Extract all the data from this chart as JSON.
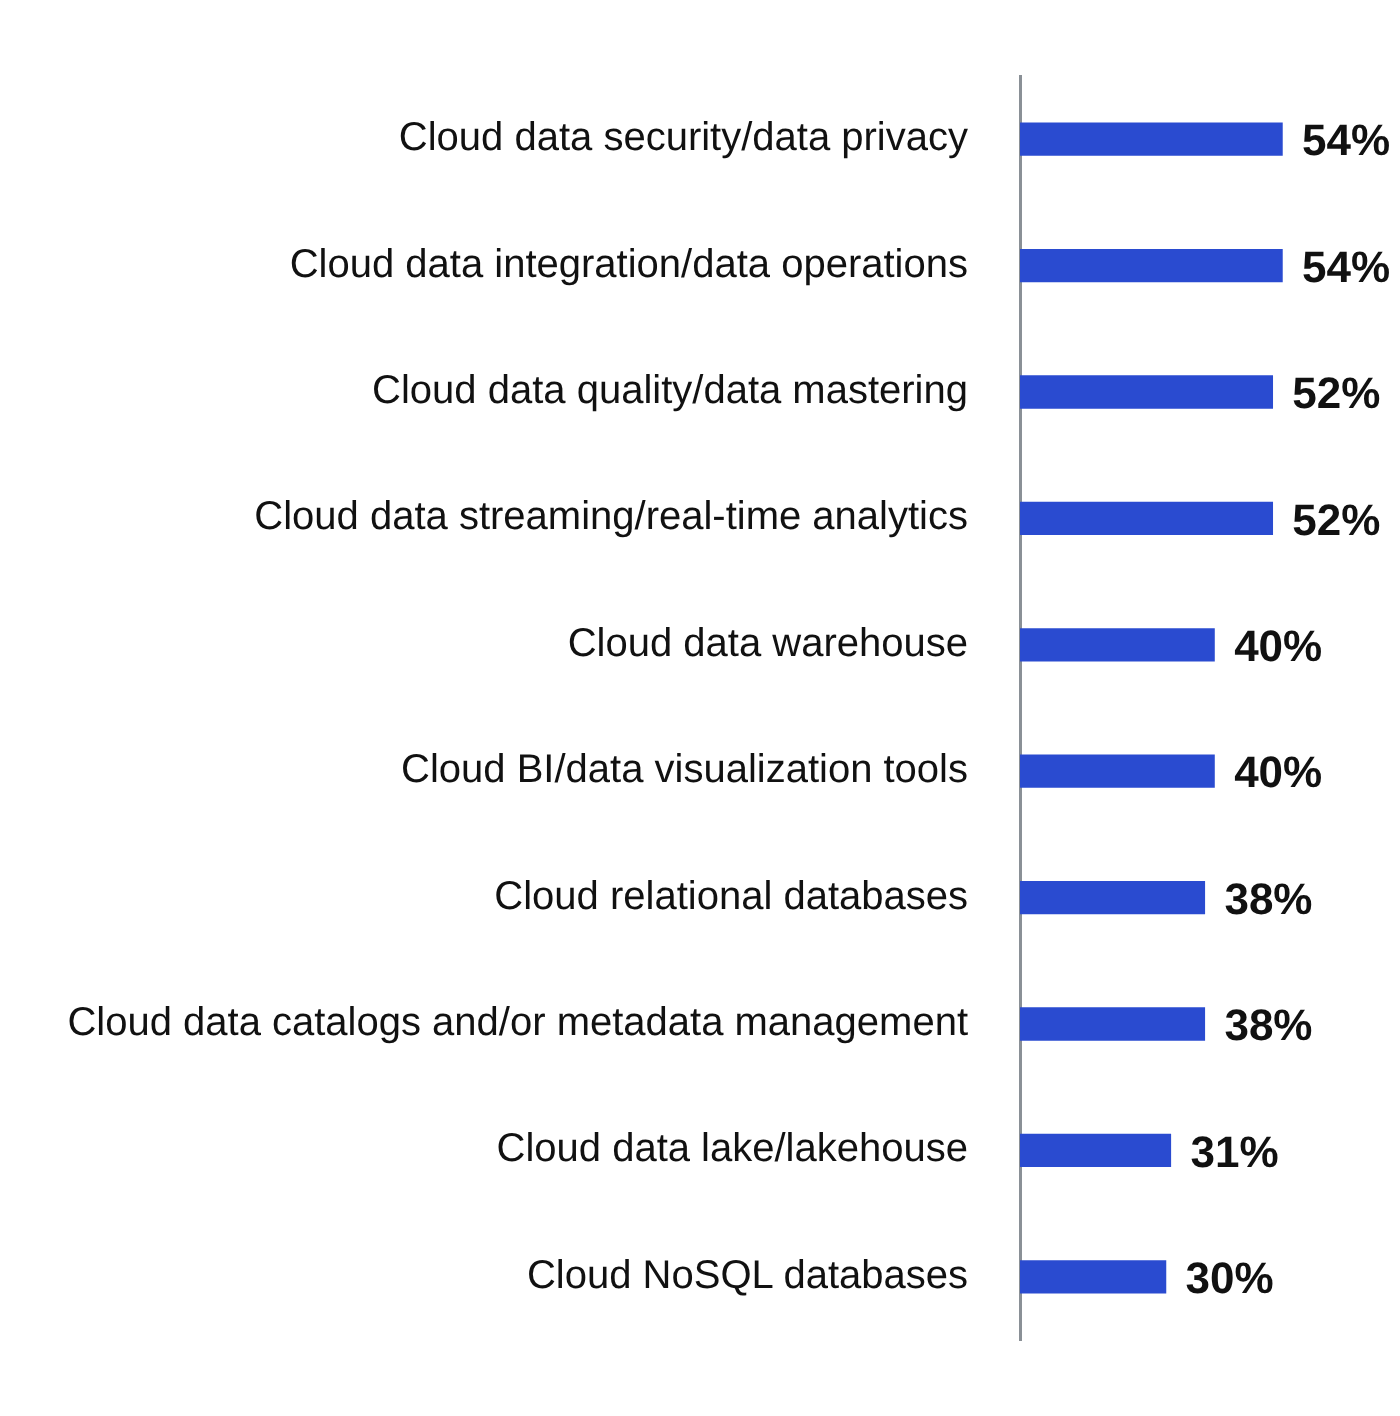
{
  "chart_data": {
    "type": "bar",
    "orientation": "horizontal",
    "categories": [
      "Cloud data security/data privacy",
      "Cloud data integration/data operations",
      "Cloud data quality/data mastering",
      "Cloud data streaming/real-time analytics",
      "Cloud data warehouse",
      "Cloud BI/data visualization tools",
      "Cloud relational databases",
      "Cloud data catalogs and/or metadata management",
      "Cloud data lake/lakehouse",
      "Cloud NoSQL databases"
    ],
    "values": [
      54,
      54,
      52,
      52,
      40,
      40,
      38,
      38,
      31,
      30
    ],
    "value_labels": [
      "54%",
      "54%",
      "52%",
      "52%",
      "40%",
      "40%",
      "38%",
      "38%",
      "31%",
      "30%"
    ],
    "color": "#2a4bd0",
    "tick_labels": "y"
  }
}
